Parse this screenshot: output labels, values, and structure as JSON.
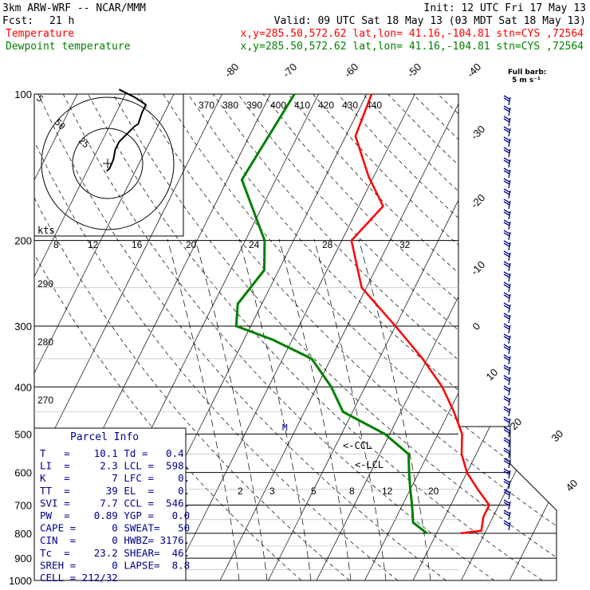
{
  "header": {
    "model": "3km ARW-WRF -- NCAR/MMM",
    "init": "Init: 12 UTC Fri 17 May 13",
    "fcst_label": "Fcst:",
    "fcst_value": "21 h",
    "valid": "Valid: 09 UTC Sat 18 May 13 (03 MDT Sat 18 May 13)",
    "rows": [
      {
        "name": "Temperature",
        "loc": "x,y=285.50,572.62   lat,lon= 41.16,-104.81   stn=CYS ,72564",
        "color": "#ff0000"
      },
      {
        "name": "Dewpoint temperature",
        "loc": "x,y=285.50,572.62   lat,lon= 41.16,-104.81   stn=CYS ,72564",
        "color": "#008000"
      }
    ]
  },
  "full_barb": {
    "line1": "Full barb:",
    "line2": "5 m s⁻¹"
  },
  "hodograph": {
    "units": "kts",
    "rings": [
      "50",
      "25",
      "5"
    ]
  },
  "mixing_ratio_labels": [
    "2",
    "3",
    "5",
    "8",
    "12",
    "20"
  ],
  "lcl_marker": "<-LCL",
  "ccl_marker": "<-CCL",
  "mark_m": "M",
  "parcel_info": {
    "title": "Parcel Info",
    "rows": [
      "T   =    10.1 Td =   0.4",
      "LI  =     2.3 LCL =  598.",
      "K   =       7 LFC =    0.",
      "TT  =      39 EL  =    0.",
      "SVI =     7.7 CCL =  546.",
      "PW  =    0.89 YGP =   0.0",
      "CAPE =      0 SWEAT=   50",
      "CIN  =      0 HWBZ= 3176.",
      "Tc  =    23.2 SHEAR=  46.",
      "SREH =      0 LAPSE=  8.8",
      "CELL = 212/32"
    ]
  },
  "chart_data": {
    "type": "line",
    "title": "",
    "xlabel": "",
    "ylabel": "",
    "y_scale": "log-pressure (skew-T)",
    "pressure_levels": [
      100,
      200,
      300,
      400,
      500,
      600,
      700,
      800,
      900,
      1000
    ],
    "pressure_labels": [
      "100",
      "200",
      "300",
      "400",
      "500",
      "600",
      "700",
      "800",
      "900",
      "1000"
    ],
    "isotherm_labels": [
      "-80",
      "-70",
      "-60",
      "-50",
      "-40",
      "-30",
      "-20",
      "-10",
      "0",
      "10",
      "20",
      "30",
      "40"
    ],
    "theta_e_labels": [
      "370",
      "380",
      "390",
      "400",
      "410",
      "420",
      "430",
      "440"
    ],
    "dry_adiabat_labels": [
      "290",
      "280",
      "270"
    ],
    "hodo_speed_labels": [
      "8",
      "12",
      "16",
      "20",
      "24",
      "28",
      "32"
    ],
    "series": [
      {
        "name": "Temperature",
        "color": "#ff0000",
        "points": [
          [
            100,
            -59
          ],
          [
            122,
            -58
          ],
          [
            148,
            -51
          ],
          [
            170,
            -45
          ],
          [
            200,
            -48
          ],
          [
            250,
            -41
          ],
          [
            300,
            -30
          ],
          [
            350,
            -21
          ],
          [
            400,
            -14
          ],
          [
            450,
            -9
          ],
          [
            500,
            -5
          ],
          [
            550,
            -3
          ],
          [
            600,
            0
          ],
          [
            650,
            4
          ],
          [
            700,
            8
          ],
          [
            740,
            8
          ],
          [
            790,
            9
          ],
          [
            800,
            5
          ]
        ]
      },
      {
        "name": "Dewpoint temperature",
        "color": "#008000",
        "points": [
          [
            100,
            -75
          ],
          [
            150,
            -77
          ],
          [
            200,
            -66
          ],
          [
            230,
            -63
          ],
          [
            270,
            -65
          ],
          [
            300,
            -63
          ],
          [
            320,
            -54
          ],
          [
            350,
            -44
          ],
          [
            400,
            -37
          ],
          [
            450,
            -32
          ],
          [
            500,
            -21
          ],
          [
            550,
            -14
          ],
          [
            600,
            -12
          ],
          [
            650,
            -10
          ],
          [
            700,
            -8
          ],
          [
            760,
            -6
          ],
          [
            800,
            -2
          ]
        ]
      }
    ],
    "hodograph_trace": [
      [
        -0.5,
        6
      ],
      [
        1,
        4
      ],
      [
        3,
        -3
      ],
      [
        4,
        -11
      ],
      [
        6,
        -17
      ],
      [
        12,
        -26
      ],
      [
        14,
        -29
      ],
      [
        16,
        -31
      ],
      [
        18,
        -40
      ],
      [
        20,
        -46
      ],
      [
        14,
        -52
      ],
      [
        6,
        -58
      ]
    ]
  }
}
